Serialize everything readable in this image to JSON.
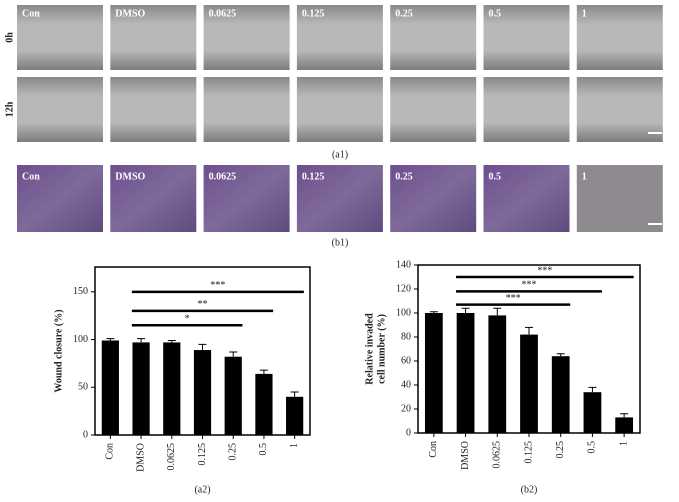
{
  "panels": {
    "a1": {
      "label": "(a1)",
      "row_labels": [
        "0h",
        "12h"
      ],
      "column_labels": [
        "Con",
        "DMSO",
        "0.0625",
        "0.125",
        "0.25",
        "0.5",
        "1"
      ]
    },
    "b1": {
      "label": "(b1)",
      "column_labels": [
        "Con",
        "DMSO",
        "0.0625",
        "0.125",
        "0.25",
        "0.5",
        "1"
      ]
    }
  },
  "chart_data": [
    {
      "type": "bar",
      "panel_label": "(a2)",
      "ylabel": "Wound closure (%)",
      "categories": [
        "Con",
        "DMSO",
        "0.0625",
        "0.125",
        "0.25",
        "0.5",
        "1"
      ],
      "values": [
        99,
        97,
        97,
        89,
        82,
        64,
        40
      ],
      "errors": [
        2,
        4,
        2,
        6,
        5,
        4,
        5
      ],
      "color": "#000000",
      "ylim": [
        0,
        176
      ],
      "yticks": [
        0,
        50,
        100,
        150
      ],
      "annotations": [
        {
          "label": "*",
          "from": 1,
          "to": 4,
          "y": 115
        },
        {
          "label": "**",
          "from": 1,
          "to": 5,
          "y": 130
        },
        {
          "label": "***",
          "from": 1,
          "to": 6,
          "y": 150
        }
      ]
    },
    {
      "type": "bar",
      "panel_label": "(b2)",
      "ylabel": [
        "Relative invaded",
        "cell number (%)"
      ],
      "categories": [
        "Con",
        "DMSO",
        "0.0625",
        "0.125",
        "0.25",
        "0.5",
        "1"
      ],
      "values": [
        100,
        100,
        98,
        82,
        64,
        34,
        13
      ],
      "errors": [
        1,
        4,
        6,
        6,
        2,
        4,
        3
      ],
      "color": "#000000",
      "ylim": [
        0,
        140
      ],
      "yticks": [
        0,
        20,
        40,
        60,
        80,
        100,
        120,
        140
      ],
      "annotations": [
        {
          "label": "***",
          "from": 1,
          "to": 4,
          "y": 107
        },
        {
          "label": "***",
          "from": 1,
          "to": 5,
          "y": 118
        },
        {
          "label": "***",
          "from": 1,
          "to": 6,
          "y": 130
        }
      ]
    }
  ]
}
